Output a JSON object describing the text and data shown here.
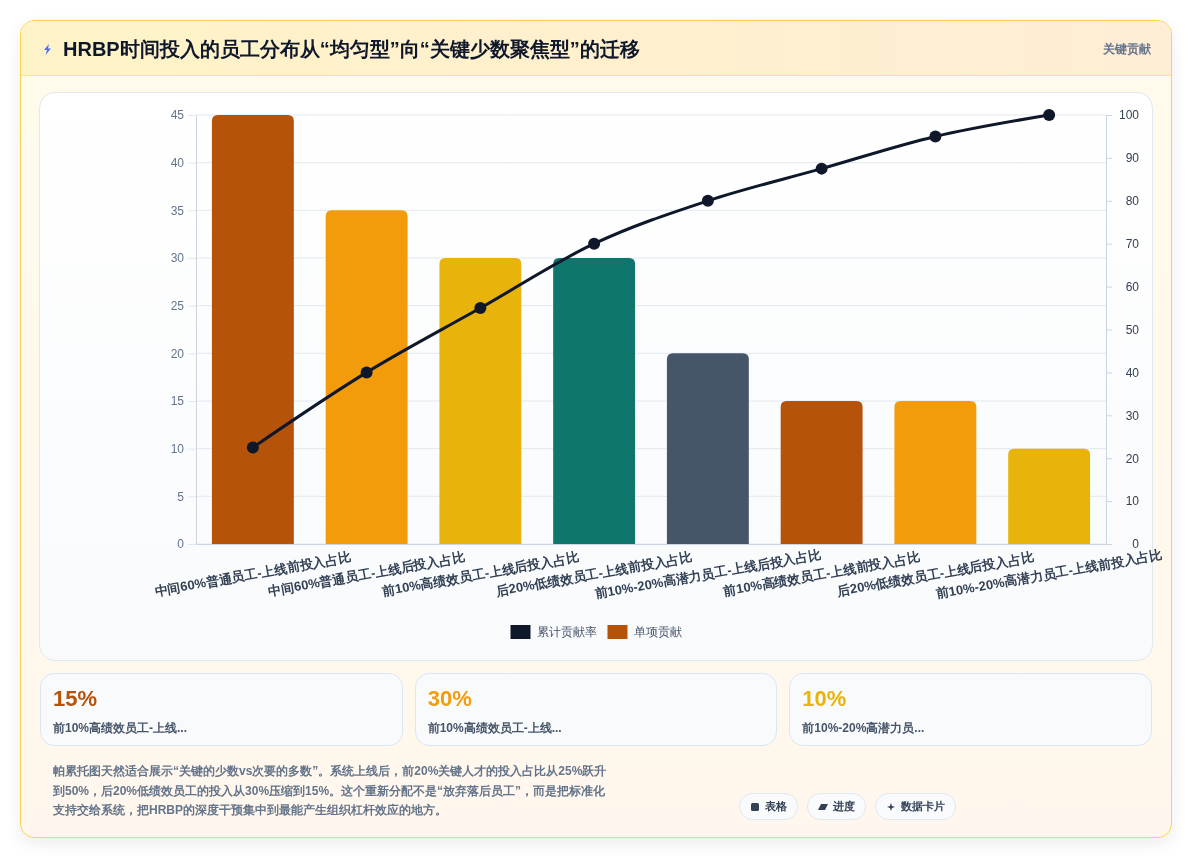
{
  "chart_data": [
    {
      "type": "bar",
      "title": "HRBP时间投入的员工分布从“均匀型”向“关键少数聚焦型”的迁移",
      "subtitle": "关键贡献",
      "categories": [
        "中间60%普通员工-上线前投入占比",
        "中间60%普通员工-上线后投入占比",
        "前10%高绩效员工-上线后投入占比",
        "后20%低绩效员工-上线前投入占比",
        "前10%-20%高潜力员工-上线后投入占比",
        "前10%高绩效员工-上线前投入占比",
        "后20%低绩效员工-上线后投入占比",
        "前10%-20%高潜力员工-上线前投入占比"
      ],
      "series": [
        {
          "name": "单项贡献",
          "type": "bar",
          "color": "#b45309",
          "colors": [
            "#b45309",
            "#f39c0b",
            "#e8b30a",
            "#0f766e",
            "#475569",
            "#b45309",
            "#f39c0b",
            "#e8b30a"
          ],
          "values": [
            45,
            35,
            30,
            30,
            20,
            15,
            15,
            10
          ]
        },
        {
          "name": "累计贡献率",
          "type": "line",
          "axis": "y2",
          "color": "#0f172a",
          "values": [
            22.5,
            40,
            55,
            70,
            80,
            87.5,
            95,
            100
          ]
        }
      ],
      "ylim": [
        0,
        45
      ],
      "yticks": [
        0,
        5,
        10,
        15,
        20,
        25,
        30,
        35,
        40,
        45
      ],
      "y2lim": [
        0,
        100
      ],
      "y2ticks": [
        0,
        10,
        20,
        30,
        40,
        50,
        60,
        70,
        80,
        90,
        100
      ],
      "grid": "y",
      "legend": "bottom",
      "marker": "circle"
    },
    {
      "type": "other",
      "categories": [
        "前10%高绩效员工-上线...",
        "前10%高绩效员工-上线...",
        "前10%-20%高潜力员..."
      ],
      "value_labels": [
        "15%",
        "30%",
        "10%"
      ],
      "annotations": [
        "帕累托图天然适合展示“关键的少数vs次要的多数”。系统上线后，前20%关键人才的投入占比从25%跃升到50%，后20%低绩效员工的投入从30%压缩到15%。这个重新分配不是“放弃落后员工”，而是把标准化支持交给系统，把HRBP的深度干预集中到最能产生组织杠杆效应的地方。",
        "表格",
        "进度",
        "数据卡片"
      ]
    }
  ]
}
